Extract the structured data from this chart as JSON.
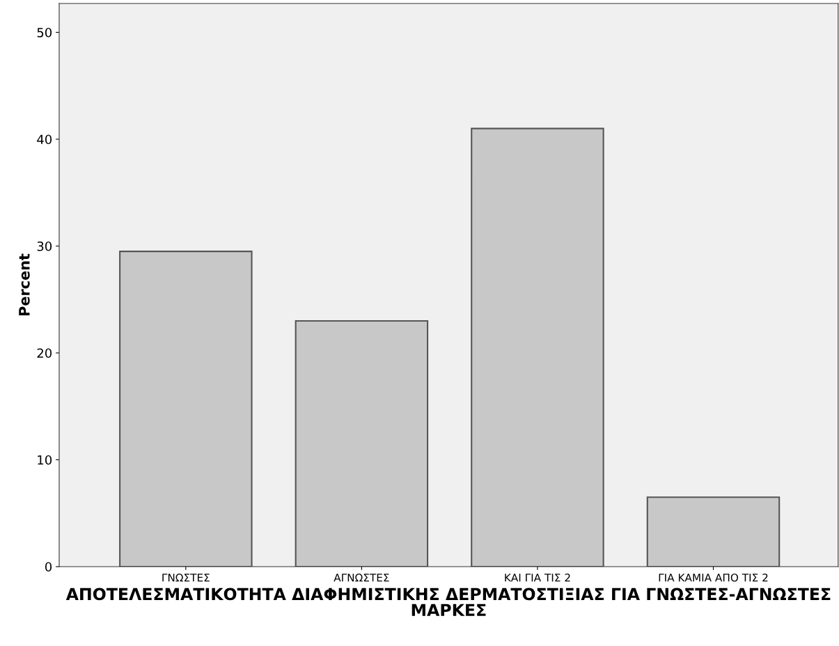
{
  "chart_data": {
    "type": "bar",
    "xlabel": "ΑΠΟΤΕΛΕΣΜΑΤΙΚΟΤΗΤΑ ΔΙΑΦΗΜΙΣΤΙΚΗΣ ΔΕΡΜΑΤΟΣΤΙΞΙΑΣ ΓΙΑ ΓΝΩΣΤΕΣ-ΑΓΝΩΣΤΕΣ ΜΑΡΚΕΣ",
    "ylabel": "Percent",
    "categories": [
      "ΓΝΩΣΤΕΣ",
      "ΑΓΝΩΣΤΕΣ",
      "ΚΑΙ ΓΙΑ ΤΙΣ 2",
      "ΓΙΑ ΚΑΜΙΑ ΑΠΟ ΤΙΣ 2"
    ],
    "values": [
      29.5,
      23.0,
      41.0,
      6.5
    ],
    "color": "#c8c8c8",
    "ylim": [
      0,
      52.7
    ],
    "yticks": [
      0,
      10,
      20,
      30,
      40,
      50
    ],
    "grid": false
  }
}
